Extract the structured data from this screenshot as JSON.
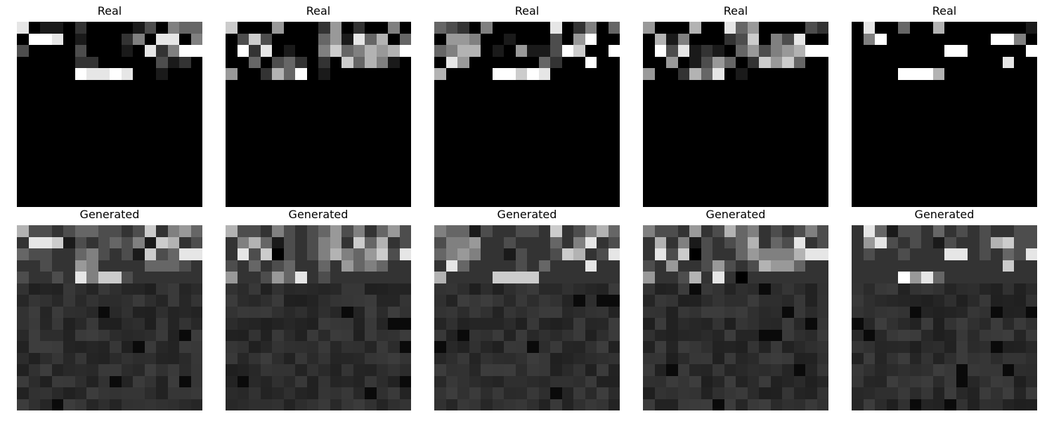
{
  "figure": {
    "columns": 5,
    "grid_size": 16,
    "rows": [
      {
        "title": "Real",
        "images": [
          {
            "top": [
              [
                9,
                0,
                1,
                1,
                0,
                2,
                0,
                0,
                0,
                0,
                1,
                3,
                0,
                5,
                4,
                4
              ],
              [
                0,
                10,
                10,
                9,
                0,
                1,
                0,
                0,
                0,
                2,
                5,
                0,
                9,
                9,
                0,
                5
              ],
              [
                3,
                0,
                0,
                0,
                0,
                3,
                0,
                0,
                0,
                1,
                0,
                9,
                2,
                5,
                10,
                10
              ],
              [
                0,
                0,
                0,
                0,
                0,
                2,
                2,
                0,
                0,
                0,
                0,
                0,
                3,
                1,
                2,
                0
              ],
              [
                0,
                0,
                0,
                0,
                0,
                10,
                9,
                9,
                10,
                9,
                0,
                0,
                1,
                0,
                0,
                0
              ]
            ]
          },
          {
            "top": [
              [
                8,
                0,
                0,
                0,
                6,
                0,
                0,
                0,
                2,
                6,
                0,
                2,
                0,
                0,
                5,
                0
              ],
              [
                0,
                3,
                8,
                3,
                0,
                0,
                0,
                0,
                4,
                6,
                1,
                9,
                4,
                7,
                0,
                4
              ],
              [
                0,
                10,
                2,
                9,
                0,
                1,
                0,
                0,
                5,
                8,
                4,
                5,
                7,
                6,
                7,
                10
              ],
              [
                0,
                0,
                4,
                0,
                3,
                4,
                2,
                0,
                2,
                0,
                8,
                4,
                7,
                5,
                1,
                0
              ],
              [
                6,
                0,
                0,
                2,
                7,
                4,
                10,
                0,
                1,
                0,
                0,
                0,
                0,
                0,
                0,
                0
              ]
            ]
          },
          {
            "top": [
              [
                4,
                3,
                2,
                0,
                5,
                0,
                0,
                0,
                0,
                0,
                9,
                0,
                2,
                5,
                0,
                4
              ],
              [
                0,
                6,
                6,
                5,
                0,
                0,
                1,
                0,
                0,
                0,
                3,
                0,
                6,
                10,
                0,
                0
              ],
              [
                4,
                5,
                7,
                7,
                0,
                1,
                0,
                6,
                1,
                1,
                3,
                10,
                8,
                0,
                0,
                10
              ],
              [
                0,
                9,
                6,
                0,
                0,
                0,
                0,
                0,
                0,
                4,
                2,
                0,
                0,
                10,
                0,
                0
              ],
              [
                7,
                0,
                0,
                0,
                0,
                10,
                10,
                8,
                10,
                9,
                0,
                0,
                0,
                0,
                0,
                0
              ]
            ]
          },
          {
            "top": [
              [
                6,
                0,
                0,
                0,
                7,
                0,
                0,
                9,
                4,
                6,
                0,
                0,
                0,
                0,
                3,
                2
              ],
              [
                0,
                7,
                1,
                5,
                0,
                0,
                0,
                2,
                3,
                8,
                0,
                5,
                3,
                9,
                0,
                0
              ],
              [
                0,
                10,
                3,
                9,
                1,
                2,
                1,
                0,
                4,
                6,
                3,
                5,
                6,
                7,
                10,
                10
              ],
              [
                0,
                0,
                6,
                0,
                1,
                3,
                6,
                4,
                0,
                2,
                8,
                6,
                8,
                4,
                0,
                0
              ],
              [
                6,
                0,
                0,
                2,
                7,
                4,
                9,
                0,
                1,
                0,
                0,
                0,
                0,
                0,
                0,
                0
              ]
            ]
          },
          {
            "top": [
              [
                0,
                9,
                0,
                0,
                4,
                0,
                0,
                7,
                0,
                0,
                0,
                0,
                0,
                0,
                0,
                1
              ],
              [
                0,
                5,
                10,
                0,
                0,
                0,
                0,
                0,
                0,
                0,
                0,
                0,
                10,
                10,
                5,
                0
              ],
              [
                0,
                0,
                0,
                0,
                0,
                0,
                0,
                0,
                10,
                10,
                0,
                0,
                0,
                0,
                0,
                10
              ],
              [
                0,
                0,
                0,
                0,
                0,
                0,
                0,
                0,
                0,
                0,
                0,
                0,
                0,
                9,
                0,
                0
              ],
              [
                0,
                0,
                0,
                0,
                10,
                10,
                10,
                7,
                0,
                0,
                0,
                0,
                0,
                0,
                0,
                0
              ]
            ]
          }
        ]
      },
      {
        "title": "Generated",
        "images": [
          {
            "top": [
              [
                7,
                3,
                3,
                2,
                3,
                4,
                4,
                3,
                3,
                2,
                3,
                8,
                2,
                5,
                6,
                4
              ],
              [
                2,
                9,
                9,
                8,
                1,
                3,
                2,
                3,
                4,
                3,
                5,
                1,
                8,
                7,
                2,
                3
              ],
              [
                4,
                3,
                3,
                2,
                2,
                4,
                5,
                3,
                2,
                3,
                1,
                8,
                3,
                4,
                9,
                9
              ],
              [
                2,
                2,
                3,
                2,
                2,
                6,
                5,
                2,
                2,
                2,
                2,
                4,
                4,
                4,
                3,
                2
              ],
              [
                3,
                2,
                2,
                3,
                2,
                9,
                5,
                8,
                8,
                3,
                2,
                2,
                2,
                2,
                2,
                2
              ]
            ]
          },
          {
            "top": [
              [
                7,
                3,
                3,
                2,
                5,
                3,
                2,
                3,
                4,
                6,
                3,
                5,
                2,
                4,
                6,
                3
              ],
              [
                2,
                5,
                7,
                4,
                1,
                3,
                2,
                3,
                5,
                6,
                2,
                8,
                4,
                7,
                2,
                3
              ],
              [
                2,
                9,
                3,
                8,
                0,
                3,
                2,
                3,
                5,
                7,
                5,
                4,
                6,
                8,
                3,
                9
              ],
              [
                3,
                2,
                4,
                2,
                3,
                4,
                2,
                2,
                4,
                2,
                6,
                4,
                5,
                4,
                2,
                2
              ],
              [
                6,
                2,
                2,
                3,
                6,
                4,
                9,
                2,
                3,
                2,
                2,
                2,
                2,
                2,
                2,
                2
              ]
            ]
          },
          {
            "top": [
              [
                5,
                4,
                4,
                1,
                3,
                2,
                2,
                3,
                3,
                2,
                8,
                2,
                3,
                5,
                7,
                4
              ],
              [
                3,
                5,
                5,
                6,
                2,
                2,
                3,
                2,
                2,
                2,
                4,
                2,
                5,
                9,
                2,
                3
              ],
              [
                4,
                5,
                6,
                5,
                2,
                2,
                1,
                3,
                2,
                2,
                3,
                8,
                7,
                2,
                3,
                9
              ],
              [
                2,
                9,
                4,
                2,
                2,
                2,
                2,
                3,
                2,
                4,
                2,
                2,
                2,
                9,
                2,
                2
              ],
              [
                7,
                2,
                2,
                2,
                2,
                8,
                8,
                8,
                8,
                2,
                2,
                2,
                2,
                2,
                2,
                2
              ]
            ]
          },
          {
            "top": [
              [
                5,
                3,
                3,
                2,
                6,
                2,
                3,
                7,
                4,
                5,
                2,
                3,
                2,
                3,
                5,
                3
              ],
              [
                2,
                7,
                2,
                5,
                1,
                3,
                2,
                3,
                4,
                7,
                2,
                4,
                3,
                9,
                2,
                3
              ],
              [
                2,
                9,
                3,
                8,
                0,
                3,
                2,
                2,
                4,
                6,
                5,
                5,
                5,
                7,
                9,
                9
              ],
              [
                3,
                2,
                6,
                2,
                2,
                3,
                6,
                3,
                2,
                3,
                7,
                6,
                6,
                4,
                2,
                2
              ],
              [
                6,
                2,
                2,
                3,
                7,
                2,
                9,
                2,
                0,
                2,
                2,
                2,
                2,
                2,
                2,
                2
              ]
            ]
          },
          {
            "top": [
              [
                2,
                9,
                4,
                1,
                3,
                3,
                2,
                4,
                2,
                3,
                2,
                3,
                2,
                2,
                3,
                3
              ],
              [
                2,
                6,
                9,
                3,
                2,
                3,
                2,
                1,
                3,
                2,
                2,
                3,
                7,
                8,
                3,
                3
              ],
              [
                2,
                3,
                2,
                2,
                3,
                2,
                2,
                2,
                9,
                9,
                2,
                3,
                2,
                4,
                3,
                9
              ],
              [
                2,
                2,
                2,
                2,
                2,
                2,
                2,
                2,
                2,
                2,
                2,
                2,
                2,
                8,
                2,
                2
              ],
              [
                2,
                2,
                2,
                2,
                10,
                6,
                9,
                4,
                2,
                2,
                2,
                2,
                2,
                2,
                2,
                2
              ]
            ]
          }
        ]
      }
    ]
  }
}
